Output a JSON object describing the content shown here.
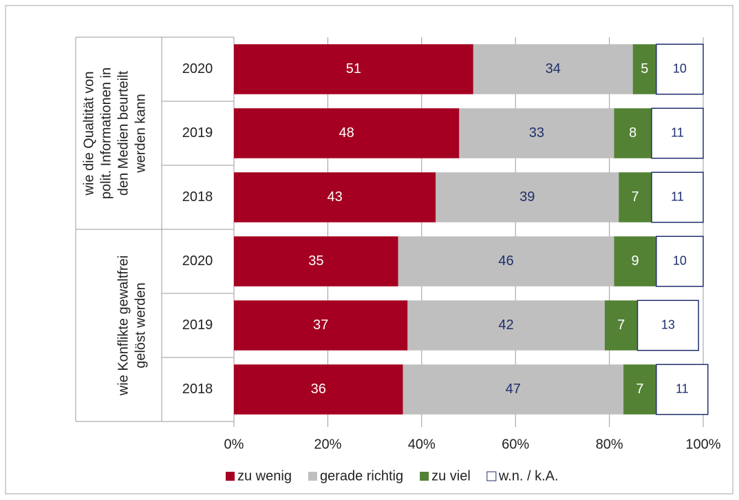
{
  "chart_data": {
    "type": "stacked-bar-horizontal",
    "groups": [
      {
        "label": [
          "wie die Qualtität von",
          "polit. Informationen in",
          "den Medien beurteilt",
          "werden kann"
        ],
        "categories": [
          "2020",
          "2019",
          "2018"
        ]
      },
      {
        "label": [
          "wie Konflikte gewaltfrei",
          "gelöst werden"
        ],
        "categories": [
          "2020",
          "2019",
          "2018"
        ]
      }
    ],
    "series": [
      {
        "name": "zu wenig",
        "color": "#a50021",
        "label_color": "#ffffff",
        "values": [
          51,
          48,
          43,
          35,
          37,
          36
        ]
      },
      {
        "name": "gerade richtig",
        "color": "#bfbfbf",
        "label_color": "#1f2f6b",
        "values": [
          34,
          33,
          39,
          46,
          42,
          47
        ]
      },
      {
        "name": "zu viel",
        "color": "#548235",
        "label_color": "#ffffff",
        "values": [
          5,
          8,
          7,
          9,
          7,
          7
        ]
      },
      {
        "name": "w.n. / k.A.",
        "color": "#ffffff",
        "label_color": "#1f2f6b",
        "values": [
          10,
          11,
          11,
          10,
          13,
          11
        ]
      }
    ],
    "xlim": [
      0,
      100
    ],
    "xticks": [
      {
        "value": 0,
        "label": "0%"
      },
      {
        "value": 20,
        "label": "20%"
      },
      {
        "value": 40,
        "label": "40%"
      },
      {
        "value": 60,
        "label": "60%"
      },
      {
        "value": 80,
        "label": "80%"
      },
      {
        "value": 100,
        "label": "100%"
      }
    ],
    "grid": true,
    "legend": "bottom"
  }
}
